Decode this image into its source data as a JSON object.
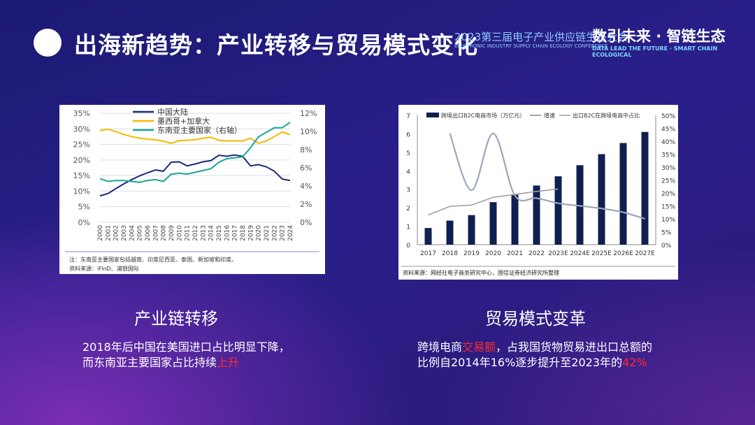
{
  "title": "出海新趋势：产业转移与贸易模式变化",
  "logo": {
    "conference": "2023第三届电子产业供应链生态大会",
    "conference_en": "ELECTRONIC INDUSTRY SUPPLY CHAIN ECOLOGY CONFERENCE",
    "slogan": "数引未来 · 智链生态",
    "slogan_en": "DATA LEAD THE FUTURE · SMART CHAIN ECOLOGICAL"
  },
  "left": {
    "subtitle": "产业链转移",
    "text_1": "2018年后中国在美国进口占比明显下降，",
    "text_2": "而东南亚主要国家占比持续",
    "highlight": "上升",
    "highlight_color": "#ff2b2b"
  },
  "right": {
    "subtitle": "贸易模式变革",
    "text_1": "跨境电商",
    "highlight_1": "交易额",
    "text_2": "，占我国货物贸易进出口总额的",
    "text_3": "比例自2014年16%逐步提升至2023年的",
    "highlight_2": "42%"
  },
  "chart_data": [
    {
      "type": "line",
      "note": "注：东南亚主要国家包括越南、印度尼西亚、泰国、新加坡和印度。",
      "source": "资料来源：iFinD、浦银国际",
      "categories": [
        "2000",
        "2001",
        "2002",
        "2003",
        "2004",
        "2005",
        "2006",
        "2007",
        "2008",
        "2009",
        "2010",
        "2011",
        "2012",
        "2013",
        "2014",
        "2015",
        "2016",
        "2017",
        "2018",
        "2019",
        "2020",
        "2021",
        "2022",
        "2023",
        "2024"
      ],
      "ylim": [
        0,
        35
      ],
      "yticks": [
        "0%",
        "5%",
        "10%",
        "15%",
        "20%",
        "25%",
        "30%",
        "35%"
      ],
      "y2lim": [
        0,
        12
      ],
      "y2ticks": [
        "0%",
        "2%",
        "4%",
        "6%",
        "8%",
        "10%",
        "12%"
      ],
      "grid": true,
      "legend": "top",
      "series": [
        {
          "name": "中国大陆",
          "color": "#1b2a7a",
          "axis": "left",
          "values": [
            8.5,
            9.2,
            10.8,
            12.3,
            13.7,
            14.9,
            15.9,
            16.8,
            16.4,
            19.3,
            19.4,
            18.1,
            18.7,
            19.4,
            19.8,
            21.5,
            21.2,
            21.6,
            21.2,
            18.1,
            18.5,
            17.8,
            16.4,
            13.9,
            13.4
          ]
        },
        {
          "name": "墨西哥+加拿大",
          "color": "#f5b800",
          "axis": "left",
          "values": [
            29.4,
            29.9,
            29.1,
            28.2,
            27.5,
            27.0,
            26.7,
            26.5,
            26.0,
            25.4,
            26.2,
            26.3,
            26.5,
            27.0,
            27.3,
            26.3,
            26.1,
            26.1,
            26.1,
            27.0,
            25.4,
            26.1,
            27.5,
            29.0,
            28.1
          ]
        },
        {
          "name": "东南亚主要国家（右轴）",
          "color": "#1aa59a",
          "axis": "right",
          "values": [
            4.8,
            4.5,
            4.6,
            4.6,
            4.5,
            4.4,
            4.6,
            4.7,
            4.5,
            5.3,
            5.4,
            5.3,
            5.5,
            5.7,
            5.9,
            6.6,
            7.0,
            7.1,
            7.2,
            8.2,
            9.4,
            9.9,
            10.4,
            10.4,
            11.0
          ]
        }
      ]
    },
    {
      "type": "bar",
      "source": "资料来源：网经社电子商务研究中心，国信证券经济研究所整理",
      "categories": [
        "2017",
        "2018",
        "2019",
        "2020",
        "2021",
        "2022",
        "2023E",
        "2024E",
        "2025E",
        "2026E",
        "2027E"
      ],
      "ylim": [
        0,
        7
      ],
      "yticks": [
        "0",
        "1",
        "2",
        "3",
        "4",
        "5",
        "6",
        "7"
      ],
      "y2lim": [
        0,
        50
      ],
      "y2ticks": [
        "0%",
        "5%",
        "10%",
        "15%",
        "20%",
        "25%",
        "30%",
        "35%",
        "40%",
        "45%",
        "50%"
      ],
      "legend": "top",
      "series": [
        {
          "name": "跨境出口B2C电商市场（万亿元）",
          "type": "bar",
          "color": "#0f1f4f",
          "values": [
            0.9,
            1.3,
            1.6,
            2.3,
            2.7,
            3.2,
            3.7,
            4.3,
            4.9,
            5.5,
            6.1
          ]
        },
        {
          "name": "增速",
          "type": "line",
          "axis": "right",
          "color": "#9aa6bd",
          "values": [
            null,
            43,
            21,
            43,
            19,
            18,
            16,
            15,
            14,
            12.5,
            10
          ]
        },
        {
          "name": "出口B2C在跨境电商中占比",
          "type": "line",
          "axis": "right",
          "color": "#a0a0a0",
          "values": [
            11.5,
            14.8,
            15.3,
            18.3,
            19.4,
            20.6,
            21.5,
            null,
            null,
            null,
            null
          ]
        }
      ]
    }
  ]
}
